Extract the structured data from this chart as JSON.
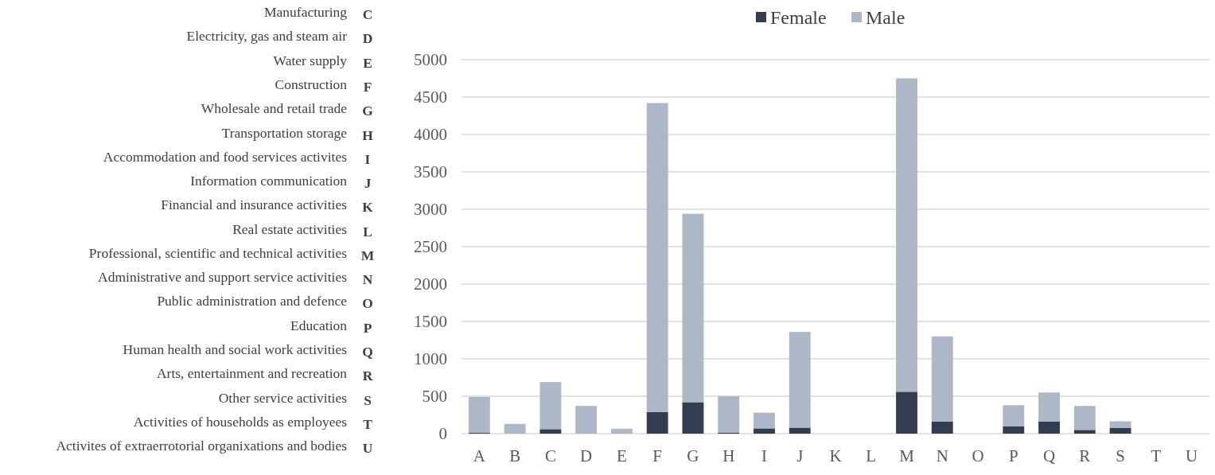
{
  "chart_data": {
    "type": "bar",
    "stacked": true,
    "categories": [
      "A",
      "B",
      "C",
      "D",
      "E",
      "F",
      "G",
      "H",
      "I",
      "J",
      "K",
      "L",
      "M",
      "N",
      "O",
      "P",
      "Q",
      "R",
      "S",
      "T",
      "U"
    ],
    "series": [
      {
        "name": "Female",
        "color": "#333d4f",
        "values": [
          10,
          0,
          60,
          0,
          0,
          290,
          420,
          15,
          70,
          80,
          0,
          0,
          560,
          160,
          0,
          100,
          160,
          50,
          75,
          0,
          0
        ]
      },
      {
        "name": "Male",
        "color": "#adb7c8",
        "values": [
          480,
          130,
          630,
          370,
          65,
          4130,
          2520,
          485,
          210,
          1280,
          0,
          0,
          4190,
          1140,
          0,
          280,
          390,
          320,
          90,
          0,
          0
        ]
      }
    ],
    "ylim": [
      0,
      5000
    ],
    "yticks": [
      0,
      500,
      1000,
      1500,
      2000,
      2500,
      3000,
      3500,
      4000,
      4500,
      5000
    ],
    "grid": "y",
    "legend": "top",
    "annotations": [
      "Manufacturing",
      "C",
      "Electricity, gas and steam air",
      "D",
      "Water supply",
      "E",
      "Construction",
      "F",
      "Wholesale and retail trade",
      "G",
      "Transportation storage",
      "H",
      "Accommodation and food services activites",
      "I",
      "Information communication",
      "J",
      "Financial and insurance activities",
      "K",
      "Real estate activities",
      "L",
      "Professional, scientific and technical activities",
      "M",
      "Administrative and support service activities",
      "N",
      "Public administration and defence",
      "O",
      "Education",
      "P",
      "Human health and social work activities",
      "Q",
      "Arts, entertainment and recreation",
      "R",
      "Other service activities",
      "S",
      "Activities of households as employees",
      "T",
      "Activites of extraerrotorial organixations and bodies",
      "U"
    ]
  }
}
